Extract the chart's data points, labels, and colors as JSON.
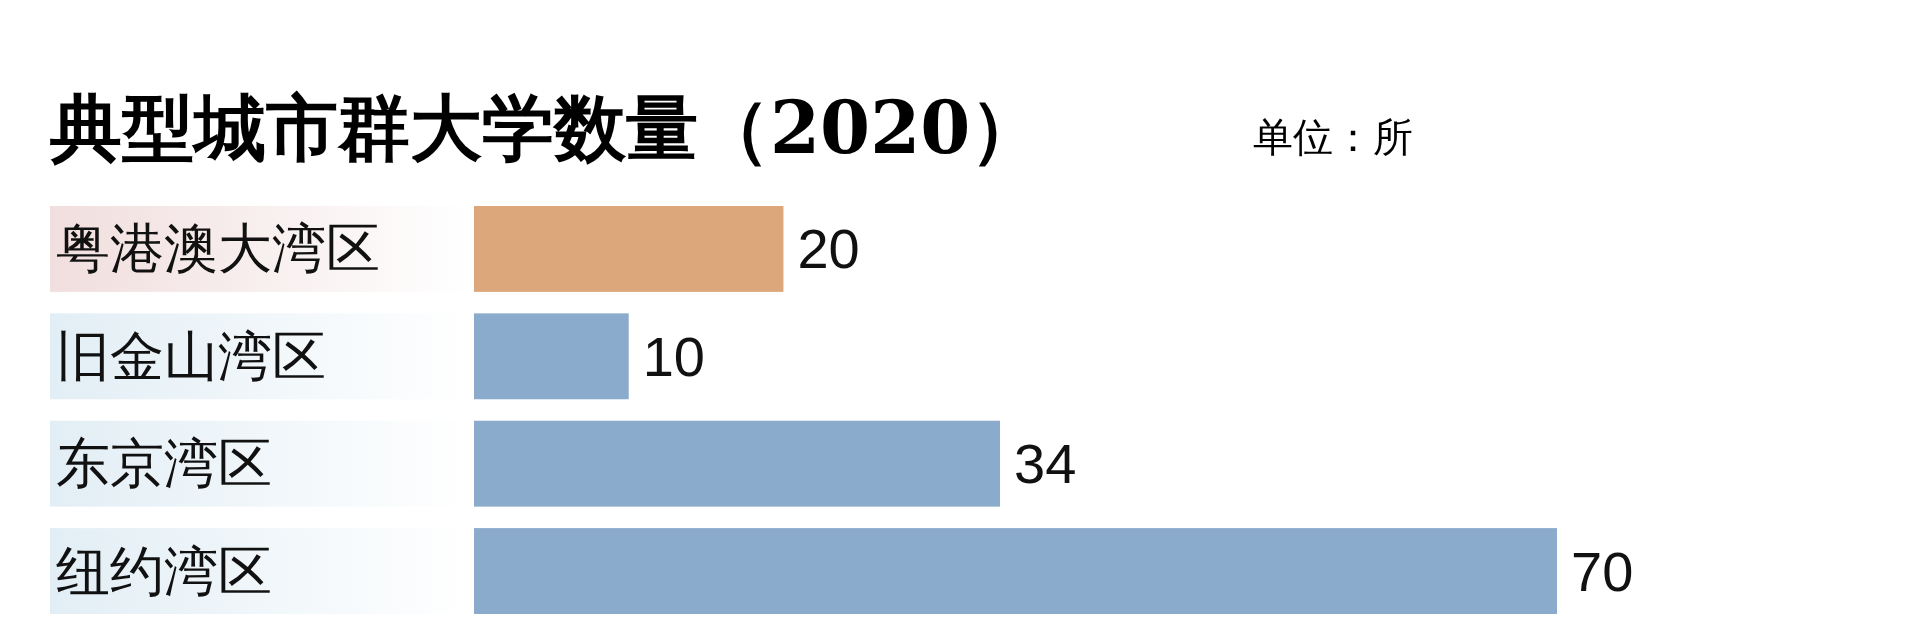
{
  "chart_data": {
    "type": "bar",
    "orientation": "horizontal",
    "title": "典型城市群大学数量（2020）",
    "subtitle": "单位：所",
    "categories": [
      "粤港澳大湾区",
      "旧金山湾区",
      "东京湾区",
      "纽约湾区"
    ],
    "values": [
      20,
      10,
      34,
      70
    ],
    "colors": [
      "#dba77b",
      "#8aabcb",
      "#8aabcb",
      "#8aabcb"
    ],
    "data_labels": true
  }
}
